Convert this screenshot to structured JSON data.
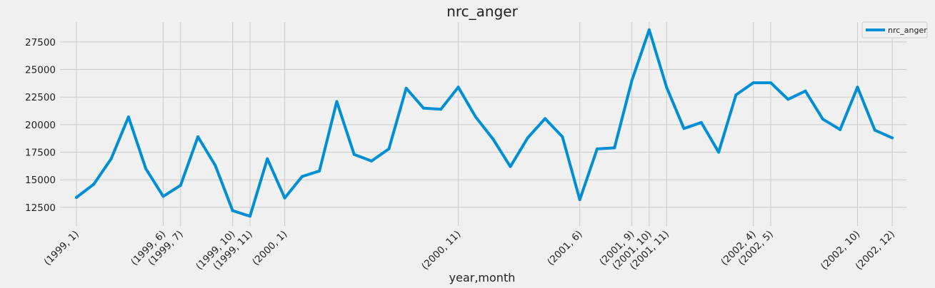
{
  "chart_data": {
    "type": "line",
    "title": "nrc_anger",
    "xlabel": "year,month",
    "ylabel": "",
    "ylim": [
      11200,
      29300
    ],
    "yticks": [
      12500,
      15000,
      17500,
      20000,
      22500,
      25000,
      27500
    ],
    "ytick_labels": [
      "12500",
      "15000",
      "17500",
      "20000",
      "22500",
      "25000",
      "27500"
    ],
    "x": [
      "(1999, 1)",
      "(1999, 2)",
      "(1999, 3)",
      "(1999, 4)",
      "(1999, 5)",
      "(1999, 6)",
      "(1999, 7)",
      "(1999, 8)",
      "(1999, 9)",
      "(1999, 10)",
      "(1999, 11)",
      "(1999, 12)",
      "(2000, 1)",
      "(2000, 2)",
      "(2000, 3)",
      "(2000, 4)",
      "(2000, 5)",
      "(2000, 6)",
      "(2000, 7)",
      "(2000, 8)",
      "(2000, 9)",
      "(2000, 10)",
      "(2000, 11)",
      "(2000, 12)",
      "(2001, 1)",
      "(2001, 2)",
      "(2001, 3)",
      "(2001, 4)",
      "(2001, 5)",
      "(2001, 6)",
      "(2001, 7)",
      "(2001, 8)",
      "(2001, 9)",
      "(2001, 10)",
      "(2001, 11)",
      "(2001, 12)",
      "(2002, 1)",
      "(2002, 2)",
      "(2002, 3)",
      "(2002, 4)",
      "(2002, 5)",
      "(2002, 6)",
      "(2002, 7)",
      "(2002, 8)",
      "(2002, 9)",
      "(2002, 10)",
      "(2002, 11)",
      "(2002, 12)"
    ],
    "xtick_labels": [
      "(1999, 1)",
      "(1999, 6)",
      "(1999, 7)",
      "(1999, 10)",
      "(1999, 11)",
      "(2000, 1)",
      "(2000, 11)",
      "(2001, 6)",
      "(2001, 9)",
      "(2001, 10)",
      "(2001, 11)",
      "(2002, 4)",
      "(2002, 5)",
      "(2002, 10)",
      "(2002, 12)"
    ],
    "series": [
      {
        "name": "nrc_anger",
        "color": "#008fd5",
        "values": [
          13400,
          14600,
          16900,
          20700,
          16000,
          13500,
          14500,
          18900,
          16300,
          12200,
          11700,
          16900,
          13350,
          15300,
          15800,
          22100,
          17300,
          16700,
          17800,
          23300,
          21500,
          21400,
          23400,
          20700,
          18700,
          16200,
          18800,
          20550,
          18900,
          13200,
          17800,
          17900,
          24000,
          28600,
          23400,
          19650,
          20200,
          17500,
          22700,
          23800,
          23800,
          22300,
          23050,
          20500,
          19550,
          23400,
          19500,
          18800
        ]
      }
    ],
    "grid": true,
    "legend": "top-right"
  }
}
